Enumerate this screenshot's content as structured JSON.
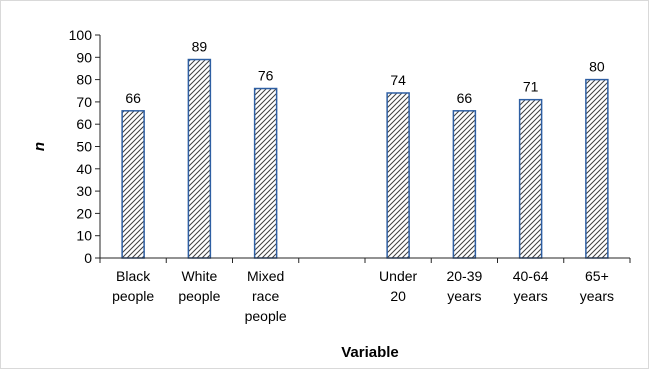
{
  "chart_data": {
    "type": "bar",
    "title": "",
    "xlabel": "Variable",
    "ylabel": "n",
    "ylim": [
      0,
      100
    ],
    "yticks": [
      0,
      10,
      20,
      30,
      40,
      50,
      60,
      70,
      80,
      90,
      100
    ],
    "grid": false,
    "legend": "none",
    "categories": [
      [
        "Black",
        "people"
      ],
      [
        "White",
        "people"
      ],
      [
        "Mixed",
        "race",
        "people"
      ],
      [],
      [
        "Under",
        "20"
      ],
      [
        "20-39",
        "years"
      ],
      [
        "40-64",
        "years"
      ],
      [
        "65+",
        "years"
      ]
    ],
    "values": [
      66,
      89,
      76,
      null,
      74,
      66,
      71,
      80
    ],
    "data_labels": [
      "66",
      "89",
      "76",
      "",
      "74",
      "66",
      "71",
      "80"
    ],
    "bar_pattern": "diagonal-hatch",
    "colors": {
      "bar_edge": "#2e5fa3",
      "hatch": "#404040",
      "axis": "#262626",
      "frame": "#d9d9d9"
    }
  }
}
